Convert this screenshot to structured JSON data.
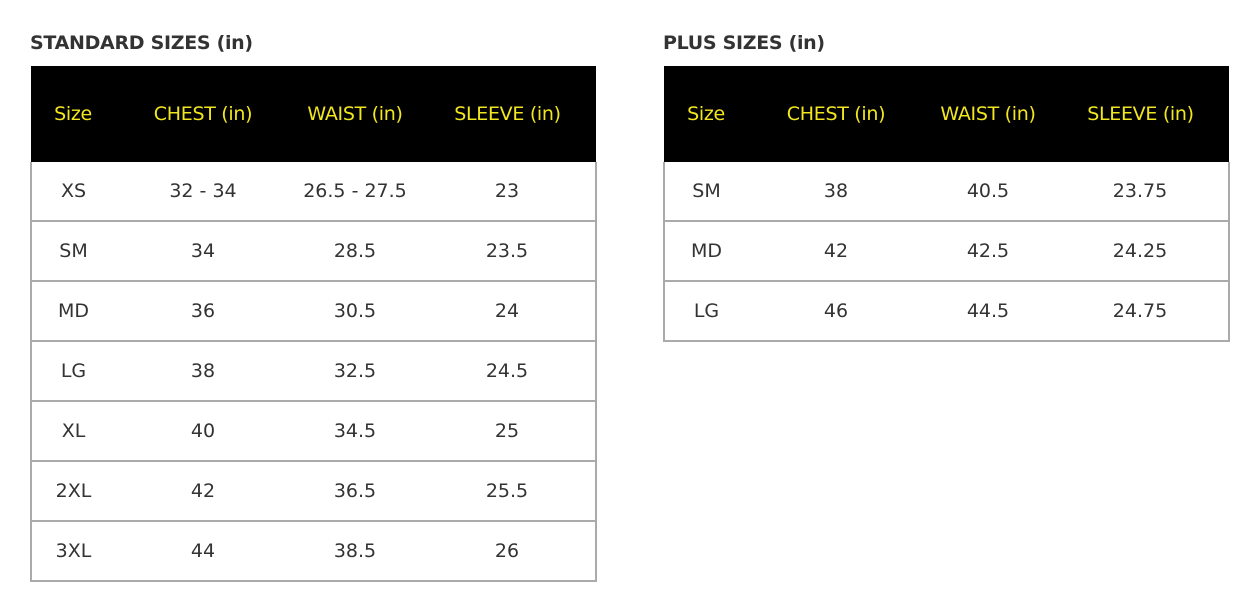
{
  "standard": {
    "title": "STANDARD SIZES (in)",
    "headers": [
      "Size",
      "CHEST (in)",
      "WAIST (in)",
      "SLEEVE (in)"
    ],
    "rows": [
      [
        "XS",
        "32 - 34",
        "26.5 - 27.5",
        "23"
      ],
      [
        "SM",
        "34",
        "28.5",
        "23.5"
      ],
      [
        "MD",
        "36",
        "30.5",
        "24"
      ],
      [
        "LG",
        "38",
        "32.5",
        "24.5"
      ],
      [
        "XL",
        "40",
        "34.5",
        "25"
      ],
      [
        "2XL",
        "42",
        "36.5",
        "25.5"
      ],
      [
        "3XL",
        "44",
        "38.5",
        "26"
      ]
    ]
  },
  "plus": {
    "title": "PLUS SIZES (in)",
    "headers": [
      "Size",
      "CHEST (in)",
      "WAIST (in)",
      "SLEEVE (in)"
    ],
    "rows": [
      [
        "SM",
        "38",
        "40.5",
        "23.75"
      ],
      [
        "MD",
        "42",
        "42.5",
        "24.25"
      ],
      [
        "LG",
        "46",
        "44.5",
        "24.75"
      ]
    ]
  },
  "colors": {
    "header_bg": "#000000",
    "header_text": "#f2e61e",
    "border": "#aaaaaa"
  }
}
